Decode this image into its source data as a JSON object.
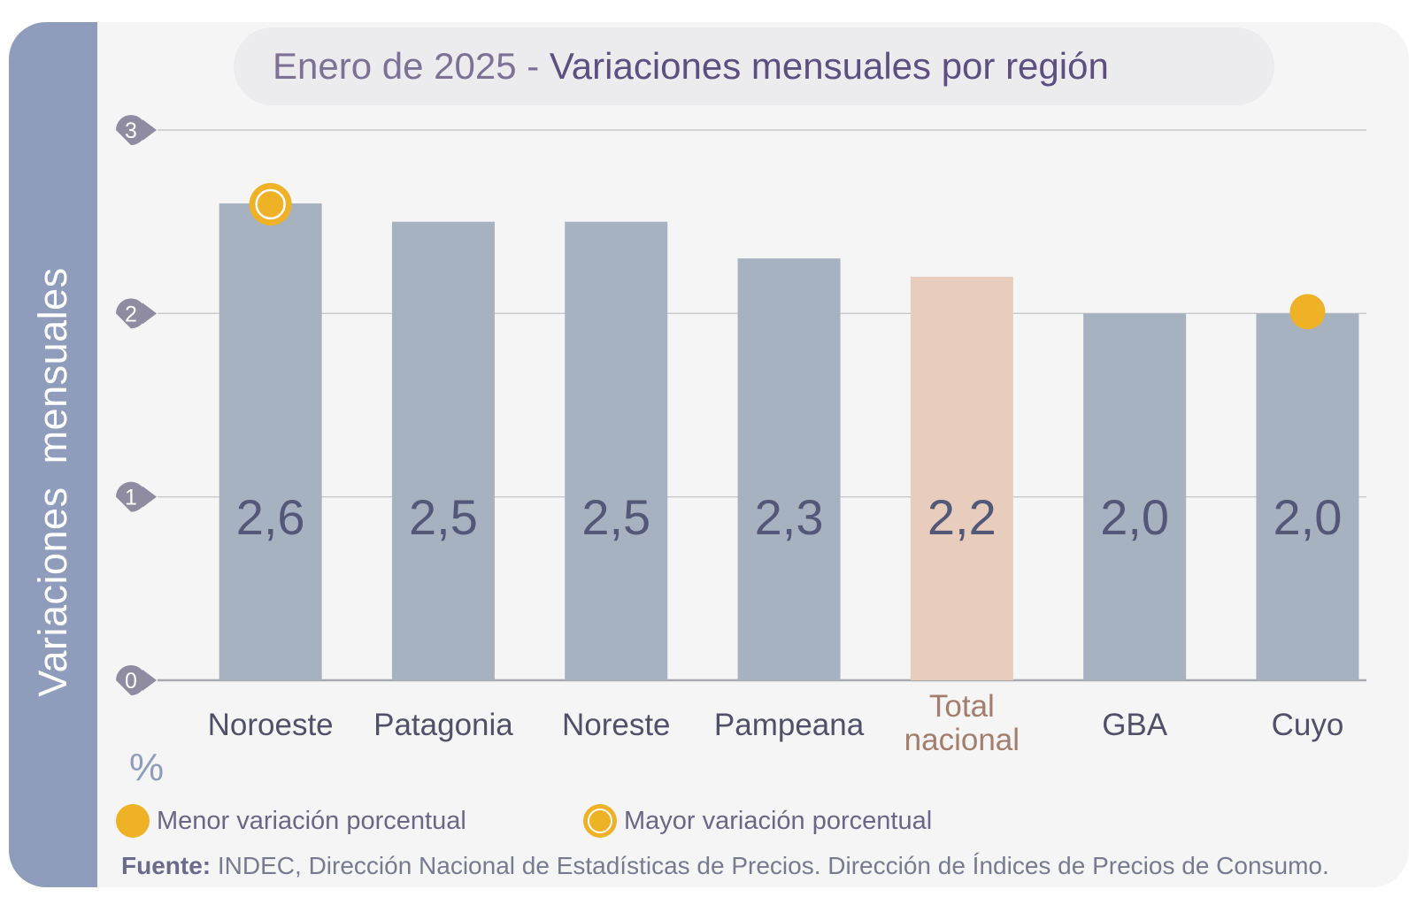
{
  "title": {
    "light": "Enero de 2025",
    "separator": " - ",
    "bold": "Variaciones mensuales por región"
  },
  "y_axis_title": "Variaciones  mensuales",
  "y_unit": "%",
  "legend": {
    "min_label": "Menor variación porcentual",
    "max_label": "Mayor variación porcentual"
  },
  "source": {
    "prefix": "Fuente:",
    "text": " INDEC, Dirección Nacional de Estadísticas de Precios. Dirección de Índices de Precios de Consumo."
  },
  "colors": {
    "bar": "#a7b2c1",
    "bar_highlight": "#e8ccbc",
    "value_text": "#535879",
    "category_text": "#505069",
    "highlight_category_text": "#a37e6c",
    "marker": "#efb125",
    "grid": "#c8c8cc",
    "tick_badge": "#8f8ca1"
  },
  "chart_data": {
    "type": "bar",
    "categories": [
      "Noroeste",
      "Patagonia",
      "Noreste",
      "Pampeana",
      "Total\nnacional",
      "GBA",
      "Cuyo"
    ],
    "values": [
      2.6,
      2.5,
      2.5,
      2.3,
      2.2,
      2.0,
      2.0
    ],
    "value_labels": [
      "2,6",
      "2,5",
      "2,5",
      "2,3",
      "2,2",
      "2,0",
      "2,0"
    ],
    "highlight_index": 4,
    "max_marker_index": 0,
    "min_marker_index": 6,
    "ylim": [
      0,
      3
    ],
    "yticks": [
      0,
      1,
      2,
      3
    ],
    "grid": true,
    "legend_position": "bottom-left"
  }
}
